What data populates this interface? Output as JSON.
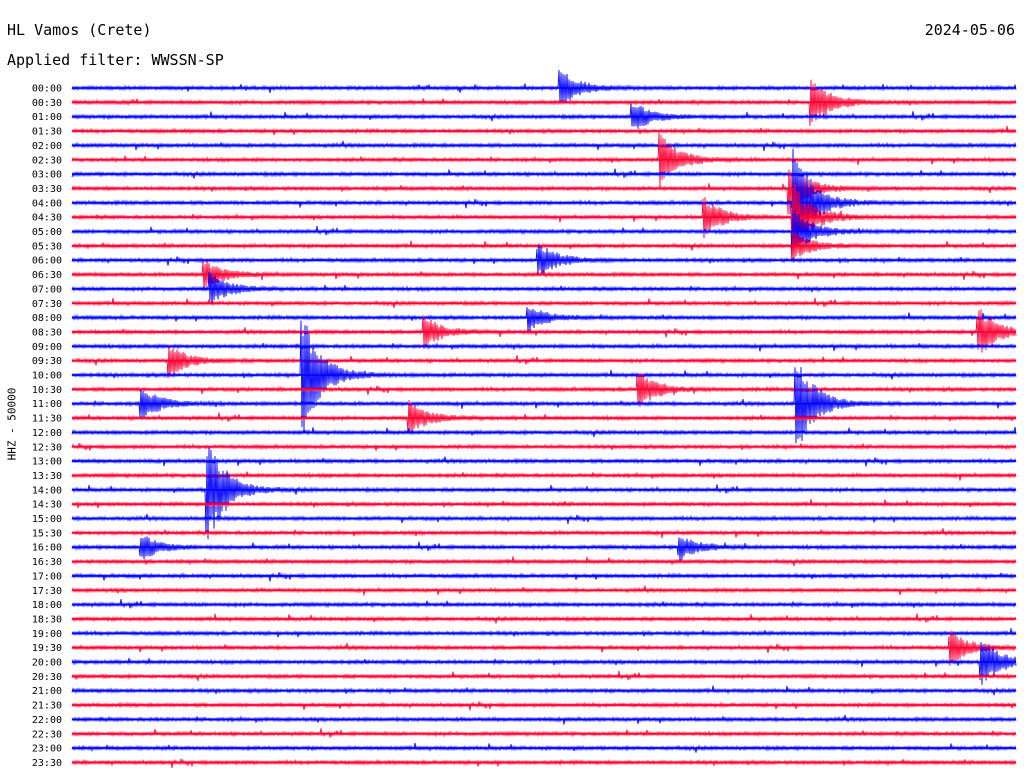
{
  "header": {
    "station": "HL Vamos (Crete)",
    "date": "2024-05-06",
    "filter": "Applied filter: WWSSN-SP",
    "ylabel": "HHZ - 50000"
  },
  "chart_data": {
    "type": "line",
    "title": "HL Vamos (Crete)",
    "date": "2024-05-06",
    "subtitle": "Applied filter: WWSSN-SP",
    "channel": "HHZ",
    "scale": 50000,
    "ylabel": "HHZ - 50000",
    "xlabel": "",
    "trace_minutes": 30,
    "colors": [
      "#0000ff",
      "#ff0033"
    ],
    "rows": [
      {
        "time": "00:00",
        "events": [
          {
            "minute": 15.5,
            "amplitude": 1.5
          }
        ]
      },
      {
        "time": "00:30",
        "events": [
          {
            "minute": 23.5,
            "amplitude": 2
          }
        ]
      },
      {
        "time": "01:00",
        "events": [
          {
            "minute": 17.8,
            "amplitude": 1.2
          }
        ]
      },
      {
        "time": "01:30",
        "events": []
      },
      {
        "time": "02:00",
        "events": []
      },
      {
        "time": "02:30",
        "events": [
          {
            "minute": 18.7,
            "amplitude": 2
          }
        ]
      },
      {
        "time": "03:00",
        "events": []
      },
      {
        "time": "03:30",
        "events": [
          {
            "minute": 22.8,
            "amplitude": 2
          }
        ]
      },
      {
        "time": "04:00",
        "events": [
          {
            "minute": 22.9,
            "amplitude": 5
          }
        ]
      },
      {
        "time": "04:30",
        "events": [
          {
            "minute": 20.1,
            "amplitude": 1.5
          },
          {
            "minute": 22.9,
            "amplitude": 3
          }
        ]
      },
      {
        "time": "05:00",
        "events": [
          {
            "minute": 22.9,
            "amplitude": 2
          }
        ]
      },
      {
        "time": "05:30",
        "events": [
          {
            "minute": 22.9,
            "amplitude": 1.2
          }
        ]
      },
      {
        "time": "06:00",
        "events": [
          {
            "minute": 14.8,
            "amplitude": 1.4
          }
        ]
      },
      {
        "time": "06:30",
        "events": [
          {
            "minute": 4.2,
            "amplitude": 1.2
          }
        ]
      },
      {
        "time": "07:00",
        "events": [
          {
            "minute": 4.4,
            "amplitude": 1.2
          }
        ]
      },
      {
        "time": "07:30",
        "events": []
      },
      {
        "time": "08:00",
        "events": [
          {
            "minute": 14.5,
            "amplitude": 1
          }
        ]
      },
      {
        "time": "08:30",
        "events": [
          {
            "minute": 11.2,
            "amplitude": 1.2
          },
          {
            "minute": 28.8,
            "amplitude": 2
          }
        ]
      },
      {
        "time": "09:00",
        "events": []
      },
      {
        "time": "09:30",
        "events": [
          {
            "minute": 3.1,
            "amplitude": 1.2
          }
        ]
      },
      {
        "time": "10:00",
        "events": [
          {
            "minute": 7.3,
            "amplitude": 5
          }
        ]
      },
      {
        "time": "10:30",
        "events": [
          {
            "minute": 18,
            "amplitude": 1.5
          }
        ]
      },
      {
        "time": "11:00",
        "events": [
          {
            "minute": 2.2,
            "amplitude": 1.3
          },
          {
            "minute": 23,
            "amplitude": 4
          }
        ]
      },
      {
        "time": "11:30",
        "events": [
          {
            "minute": 10.7,
            "amplitude": 1.3
          }
        ]
      },
      {
        "time": "12:00",
        "events": []
      },
      {
        "time": "12:30",
        "events": []
      },
      {
        "time": "13:00",
        "events": []
      },
      {
        "time": "13:30",
        "events": []
      },
      {
        "time": "14:00",
        "events": [
          {
            "minute": 4.3,
            "amplitude": 4.5
          }
        ]
      },
      {
        "time": "14:30",
        "events": []
      },
      {
        "time": "15:00",
        "events": []
      },
      {
        "time": "15:30",
        "events": []
      },
      {
        "time": "16:00",
        "events": [
          {
            "minute": 2.2,
            "amplitude": 1
          },
          {
            "minute": 19.3,
            "amplitude": 1
          }
        ]
      },
      {
        "time": "16:30",
        "events": []
      },
      {
        "time": "17:00",
        "events": []
      },
      {
        "time": "17:30",
        "events": []
      },
      {
        "time": "18:00",
        "events": []
      },
      {
        "time": "18:30",
        "events": []
      },
      {
        "time": "19:00",
        "events": []
      },
      {
        "time": "19:30",
        "events": [
          {
            "minute": 27.9,
            "amplitude": 1.3
          }
        ]
      },
      {
        "time": "20:00",
        "events": [
          {
            "minute": 28.9,
            "amplitude": 2
          }
        ]
      },
      {
        "time": "20:30",
        "events": []
      },
      {
        "time": "21:00",
        "events": []
      },
      {
        "time": "21:30",
        "events": []
      },
      {
        "time": "22:00",
        "events": []
      },
      {
        "time": "22:30",
        "events": []
      },
      {
        "time": "23:00",
        "events": []
      },
      {
        "time": "23:30",
        "events": []
      }
    ]
  }
}
